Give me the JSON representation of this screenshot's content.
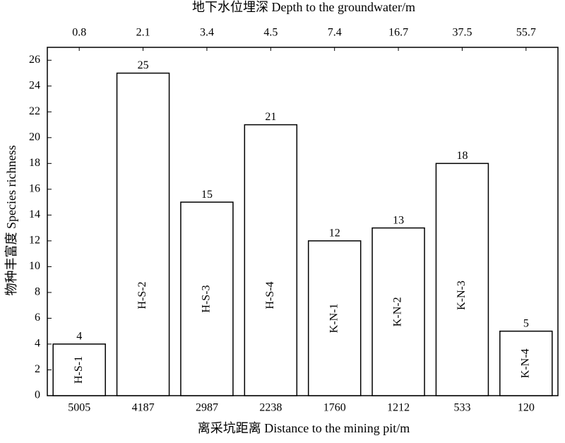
{
  "chart_data": {
    "type": "bar",
    "title": "地下水位埋深 Depth to the groundwater/m",
    "x_title": "离采坑距离 Distance to the mining pit/m",
    "y_title": "物种丰富度 Species richness",
    "categories": [
      "H-S-1",
      "H-S-2",
      "H-S-3",
      "H-S-4",
      "K-N-1",
      "K-N-2",
      "K-N-3",
      "K-N-4"
    ],
    "distances": [
      "5005",
      "4187",
      "2987",
      "2238",
      "1760",
      "1212",
      "533",
      "120"
    ],
    "depths": [
      "0.8",
      "2.1",
      "3.4",
      "4.5",
      "7.4",
      "16.7",
      "37.5",
      "55.7"
    ],
    "values": [
      4,
      25,
      15,
      21,
      12,
      13,
      18,
      5
    ],
    "color": "#ffffff",
    "ylim": [
      0,
      27
    ],
    "yticks": [
      0,
      2,
      4,
      6,
      8,
      10,
      12,
      14,
      16,
      18,
      20,
      22,
      24,
      26
    ]
  }
}
